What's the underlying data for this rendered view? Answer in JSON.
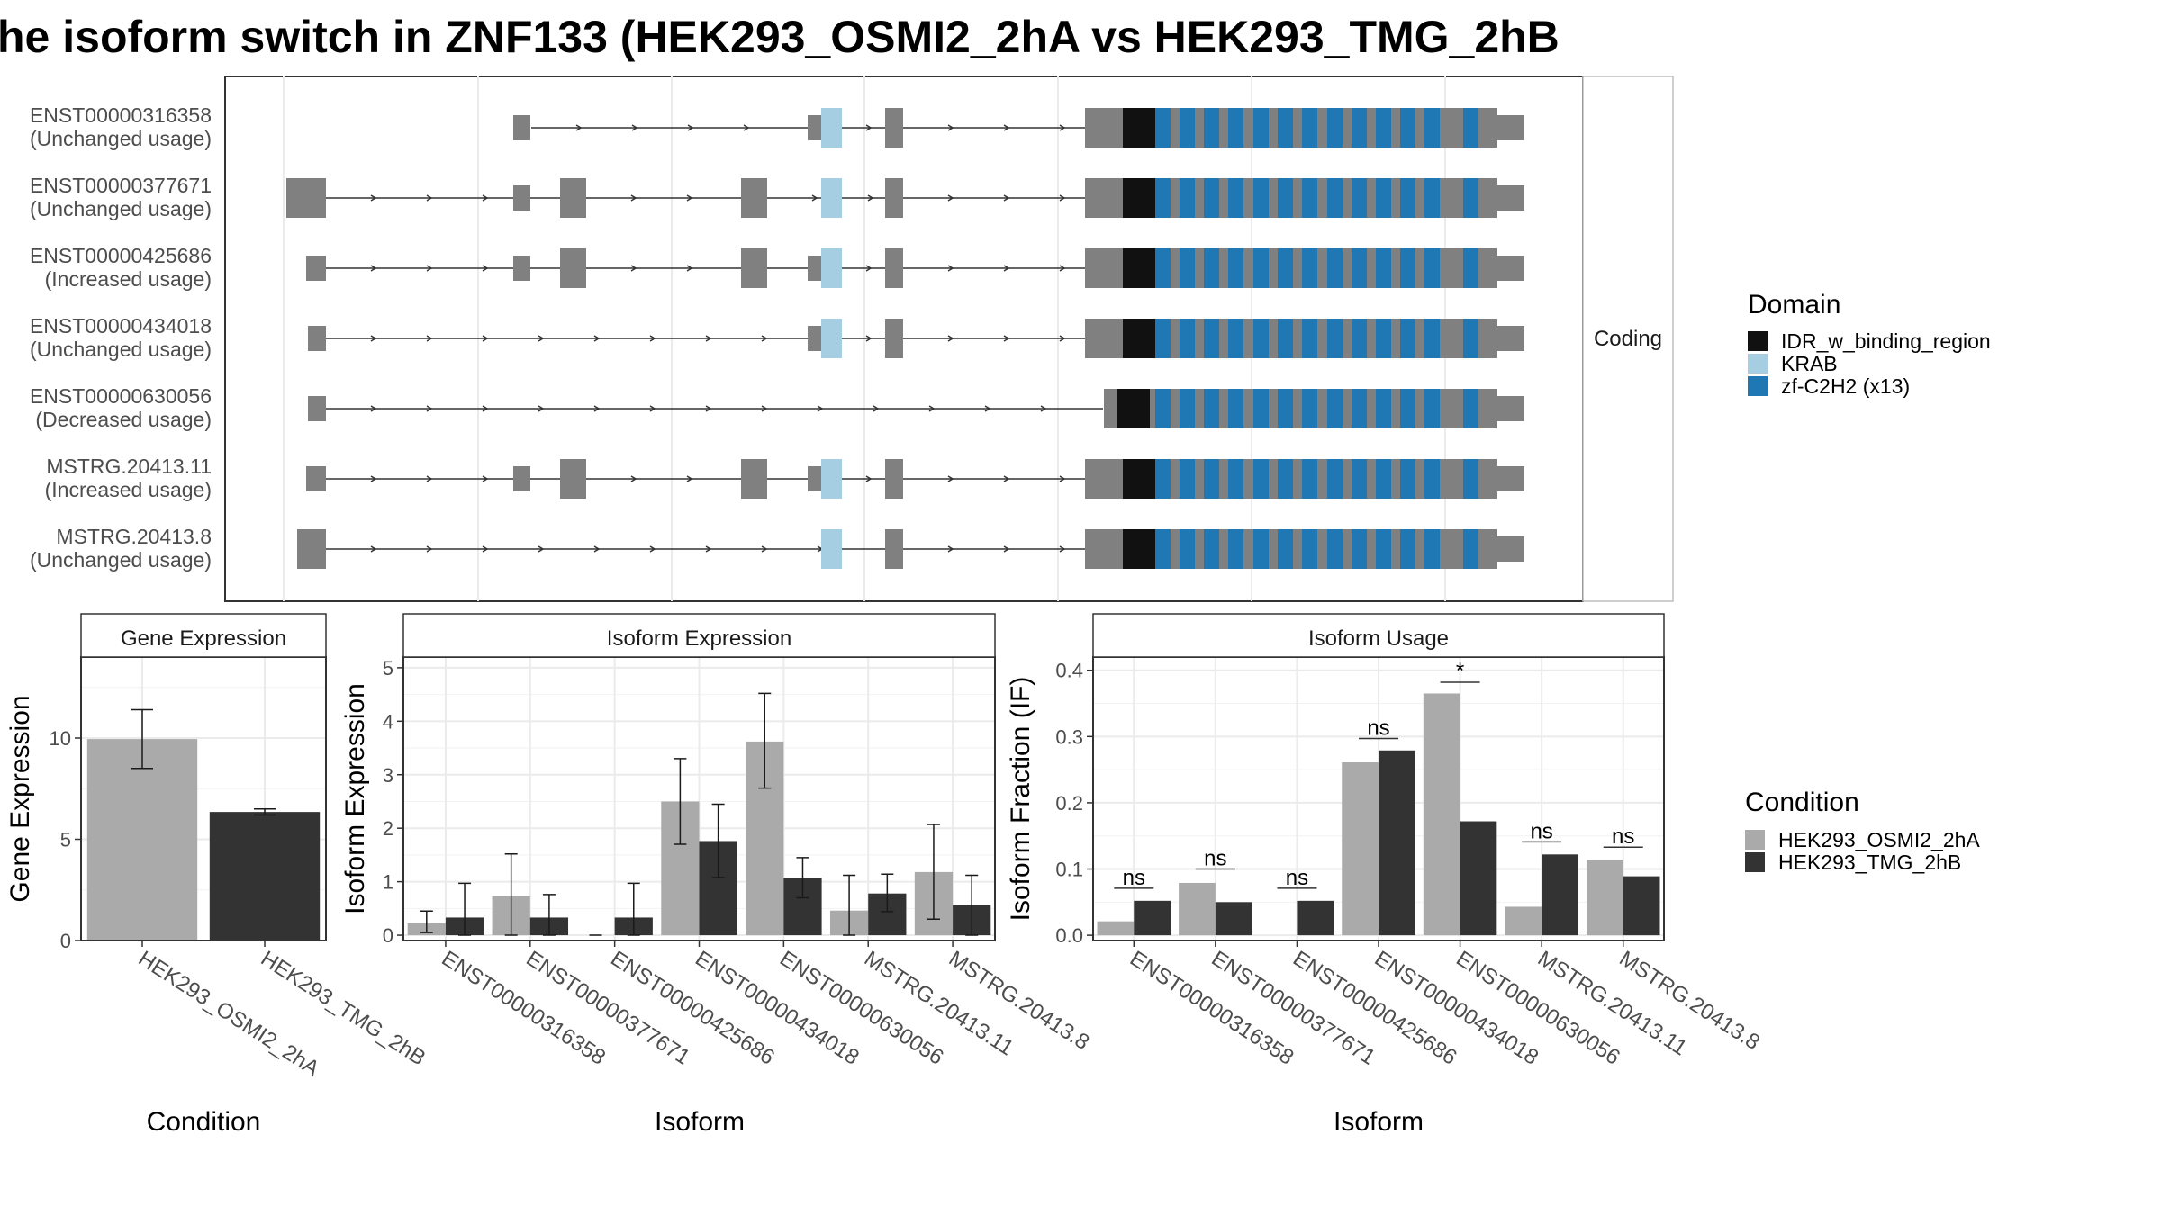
{
  "title": "he isoform switch in ZNF133 (HEK293_OSMI2_2hA vs HEK293_TMG_2hB",
  "colors": {
    "exon": "#808080",
    "IDR_w_binding_region": "#111111",
    "KRAB": "#a6cee3",
    "zf_C2H2": "#1f78b4",
    "cond1": "#aaaaaa",
    "cond2": "#333333"
  },
  "transcript_panel": {
    "facet_label": "Coding",
    "transcripts": [
      {
        "id": "ENST00000316358",
        "usage": "(Unchanged usage)"
      },
      {
        "id": "ENST00000377671",
        "usage": "(Unchanged usage)"
      },
      {
        "id": "ENST00000425686",
        "usage": "(Increased usage)"
      },
      {
        "id": "ENST00000434018",
        "usage": "(Unchanged usage)"
      },
      {
        "id": "ENST00000630056",
        "usage": "(Decreased usage)"
      },
      {
        "id": "MSTRG.20413.11",
        "usage": "(Increased usage)"
      },
      {
        "id": "MSTRG.20413.8",
        "usage": "(Unchanged usage)"
      }
    ]
  },
  "legends": {
    "domain": {
      "title": "Domain",
      "entries": [
        {
          "label": "IDR_w_binding_region",
          "color_key": "IDR_w_binding_region"
        },
        {
          "label": "KRAB",
          "color_key": "KRAB"
        },
        {
          "label": "zf-C2H2 (x13)",
          "color_key": "zf_C2H2"
        }
      ]
    },
    "condition": {
      "title": "Condition",
      "entries": [
        {
          "label": "HEK293_OSMI2_2hA",
          "color_key": "cond1"
        },
        {
          "label": "HEK293_TMG_2hB",
          "color_key": "cond2"
        }
      ]
    }
  },
  "chart_data": [
    {
      "type": "bar",
      "title": "Gene Expression",
      "xlabel": "Condition",
      "ylabel": "Gene Expression",
      "ylim": [
        0,
        14
      ],
      "yticks": [
        0,
        5,
        10
      ],
      "categories": [
        "HEK293_OSMI2_2hA",
        "HEK293_TMG_2hB"
      ],
      "values": [
        9.95,
        6.35
      ],
      "errors": [
        [
          8.5,
          11.4
        ],
        [
          6.2,
          6.5
        ]
      ]
    },
    {
      "type": "bar",
      "title": "Isoform Expression",
      "xlabel": "Isoform",
      "ylabel": "Isoform Expression",
      "ylim": [
        -0.1,
        5.2
      ],
      "yticks": [
        0,
        1,
        2,
        3,
        4,
        5
      ],
      "categories": [
        "ENST00000316358",
        "ENST00000377671",
        "ENST00000425686",
        "ENST00000434018",
        "ENST00000630056",
        "MSTRG.20413.11",
        "MSTRG.20413.8"
      ],
      "series": [
        {
          "name": "HEK293_OSMI2_2hA",
          "values": [
            0.22,
            0.73,
            0.0,
            2.5,
            3.62,
            0.46,
            1.18
          ],
          "errors": [
            [
              0.05,
              0.45
            ],
            [
              0.0,
              1.52
            ],
            [
              0.0,
              0.0
            ],
            [
              1.7,
              3.3
            ],
            [
              2.75,
              4.52
            ],
            [
              0.0,
              1.12
            ],
            [
              0.3,
              2.07
            ]
          ]
        },
        {
          "name": "HEK293_TMG_2hB",
          "values": [
            0.33,
            0.33,
            0.33,
            1.76,
            1.07,
            0.78,
            0.56
          ],
          "errors": [
            [
              0.0,
              0.97
            ],
            [
              0.0,
              0.76
            ],
            [
              0.0,
              0.97
            ],
            [
              1.08,
              2.45
            ],
            [
              0.7,
              1.45
            ],
            [
              0.44,
              1.14
            ],
            [
              0.0,
              1.12
            ]
          ]
        }
      ]
    },
    {
      "type": "bar",
      "title": "Isoform Usage",
      "xlabel": "Isoform",
      "ylabel": "Isoform Fraction (IF)",
      "ylim": [
        -0.008,
        0.42
      ],
      "yticks": [
        0.0,
        0.1,
        0.2,
        0.3,
        0.4
      ],
      "ytick_labels": [
        "0.0",
        "0.1",
        "0.2",
        "0.3",
        "0.4"
      ],
      "categories": [
        "ENST00000316358",
        "ENST00000377671",
        "ENST00000425686",
        "ENST00000434018",
        "ENST00000630056",
        "MSTRG.20413.11",
        "MSTRG.20413.8"
      ],
      "series": [
        {
          "name": "HEK293_OSMI2_2hA",
          "values": [
            0.021,
            0.079,
            0.0,
            0.261,
            0.365,
            0.043,
            0.114
          ]
        },
        {
          "name": "HEK293_TMG_2hB",
          "values": [
            0.052,
            0.05,
            0.052,
            0.279,
            0.172,
            0.122,
            0.089
          ]
        }
      ],
      "significance": [
        "ns",
        "ns",
        "ns",
        "ns",
        "*",
        "ns",
        "ns"
      ],
      "significance_level": [
        0.071,
        0.1,
        0.071,
        0.297,
        0.382,
        0.141,
        0.133
      ]
    }
  ]
}
